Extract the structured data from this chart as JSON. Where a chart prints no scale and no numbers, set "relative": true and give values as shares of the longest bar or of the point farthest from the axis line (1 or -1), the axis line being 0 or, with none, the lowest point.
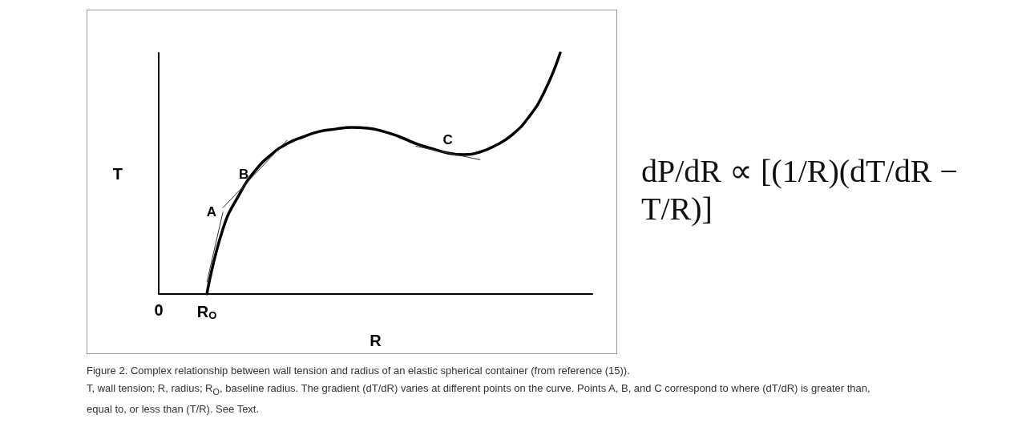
{
  "chart_data": {
    "type": "line",
    "relative": true,
    "xlabel": "R",
    "ylabel": "T",
    "categories": [
      "0",
      null,
      null,
      "R$_{O}$",
      null,
      null,
      null,
      null,
      null,
      null,
      null,
      null,
      null,
      null,
      null,
      null,
      null,
      null,
      null,
      null,
      null,
      null,
      null,
      null,
      null,
      null,
      null,
      null
    ],
    "series": [
      {
        "color": "#000000",
        "values": [
          null,
          null,
          null,
          0,
          0.27,
          0.411,
          0.511,
          0.578,
          0.624,
          0.652,
          0.674,
          0.684,
          0.691,
          0.688,
          0.674,
          0.652,
          0.624,
          0.603,
          0.585,
          0.578,
          0.589,
          0.617,
          0.66,
          0.73,
          0.837,
          1,
          null,
          null
        ]
      },
      {
        "name": "A",
        "color": "#333333",
        "values": [
          null,
          null,
          null,
          0.05,
          0.34,
          null,
          null,
          null,
          null,
          null,
          null,
          null,
          null,
          null,
          null,
          null,
          null,
          null,
          null,
          null,
          null,
          null,
          null,
          null,
          null,
          null,
          null,
          null
        ]
      },
      {
        "name": "B",
        "color": "#333333",
        "values": [
          null,
          null,
          null,
          null,
          0.358,
          null,
          0.498,
          null,
          0.638,
          null,
          null,
          null,
          null,
          null,
          null,
          null,
          null,
          null,
          null,
          null,
          null,
          null,
          null,
          null,
          null,
          null,
          null,
          null
        ]
      },
      {
        "name": "C",
        "color": "#333333",
        "values": [
          null,
          null,
          null,
          null,
          null,
          null,
          null,
          null,
          null,
          null,
          null,
          null,
          null,
          null,
          null,
          null,
          0.613,
          null,
          0.585,
          null,
          0.557,
          null,
          null,
          null,
          null,
          null,
          null,
          null
        ]
      }
    ],
    "annotations": [
      "dP/dR ∝ [(1/R)(dT/dR − T/R)]",
      "Figure 2. Complex relationship between wall tension and radius of an elastic spherical container (from reference (15)).",
      "T, wall tension; R, radius; R$_{O}$, baseline radius. The gradient (dT/dR) varies at different points on the curve. Points A, B, and C correspond to where (dT/dR) is greater than, equal to, or less than (T/R). See Text."
    ]
  }
}
